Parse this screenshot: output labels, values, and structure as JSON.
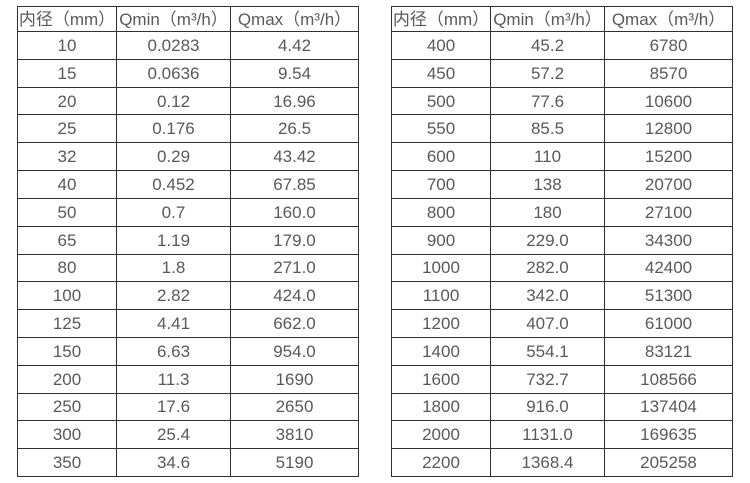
{
  "header": {
    "col_diameter": "内径（mm）",
    "col_qmin": "Qmin（m³/h）",
    "col_qmax": "Qmax（m³/h）"
  },
  "left_table": {
    "rows": [
      {
        "d": "10",
        "qmin": "0.0283",
        "qmax": "4.42"
      },
      {
        "d": "15",
        "qmin": "0.0636",
        "qmax": "9.54"
      },
      {
        "d": "20",
        "qmin": "0.12",
        "qmax": "16.96"
      },
      {
        "d": "25",
        "qmin": "0.176",
        "qmax": "26.5"
      },
      {
        "d": "32",
        "qmin": "0.29",
        "qmax": "43.42"
      },
      {
        "d": "40",
        "qmin": "0.452",
        "qmax": "67.85"
      },
      {
        "d": "50",
        "qmin": "0.7",
        "qmax": "160.0"
      },
      {
        "d": "65",
        "qmin": "1.19",
        "qmax": "179.0"
      },
      {
        "d": "80",
        "qmin": "1.8",
        "qmax": "271.0"
      },
      {
        "d": "100",
        "qmin": "2.82",
        "qmax": "424.0"
      },
      {
        "d": "125",
        "qmin": "4.41",
        "qmax": "662.0"
      },
      {
        "d": "150",
        "qmin": "6.63",
        "qmax": "954.0"
      },
      {
        "d": "200",
        "qmin": "11.3",
        "qmax": "1690"
      },
      {
        "d": "250",
        "qmin": "17.6",
        "qmax": "2650"
      },
      {
        "d": "300",
        "qmin": "25.4",
        "qmax": "3810"
      },
      {
        "d": "350",
        "qmin": "34.6",
        "qmax": "5190"
      }
    ]
  },
  "right_table": {
    "rows": [
      {
        "d": "400",
        "qmin": "45.2",
        "qmax": "6780"
      },
      {
        "d": "450",
        "qmin": "57.2",
        "qmax": "8570"
      },
      {
        "d": "500",
        "qmin": "77.6",
        "qmax": "10600"
      },
      {
        "d": "550",
        "qmin": "85.5",
        "qmax": "12800"
      },
      {
        "d": "600",
        "qmin": "110",
        "qmax": "15200"
      },
      {
        "d": "700",
        "qmin": "138",
        "qmax": "20700"
      },
      {
        "d": "800",
        "qmin": "180",
        "qmax": "27100"
      },
      {
        "d": "900",
        "qmin": "229.0",
        "qmax": "34300"
      },
      {
        "d": "1000",
        "qmin": "282.0",
        "qmax": "42400"
      },
      {
        "d": "1100",
        "qmin": "342.0",
        "qmax": "51300"
      },
      {
        "d": "1200",
        "qmin": "407.0",
        "qmax": "61000"
      },
      {
        "d": "1400",
        "qmin": "554.1",
        "qmax": "83121"
      },
      {
        "d": "1600",
        "qmin": "732.7",
        "qmax": "108566"
      },
      {
        "d": "1800",
        "qmin": "916.0",
        "qmax": "137404"
      },
      {
        "d": "2000",
        "qmin": "1131.0",
        "qmax": "169635"
      },
      {
        "d": "2200",
        "qmin": "1368.4",
        "qmax": "205258"
      }
    ]
  }
}
